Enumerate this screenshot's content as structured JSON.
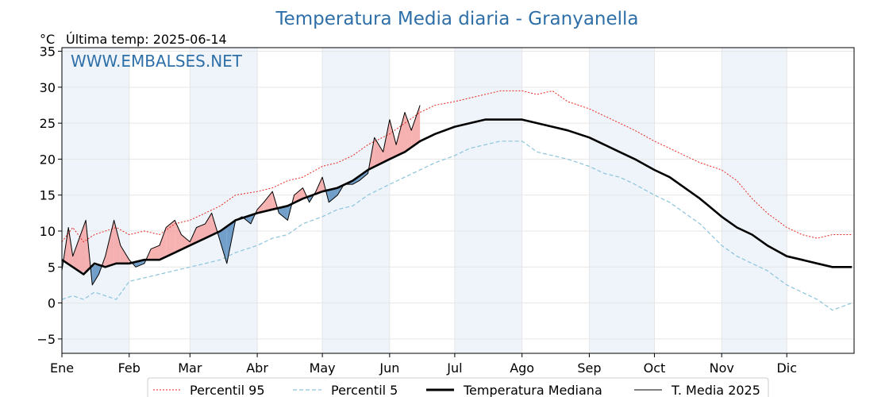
{
  "chart_data": {
    "type": "line",
    "title": "Temperatura Media diaria - Granyanella",
    "unit_label": "°C",
    "last_temp_label": "Última temp: 2025-06-14",
    "watermark": "WWW.EMBALSES.NET",
    "ylim": [
      -7,
      35.5
    ],
    "xlim": [
      0,
      365
    ],
    "y_ticks": [
      -5,
      0,
      5,
      10,
      15,
      20,
      25,
      30,
      35
    ],
    "month_labels": [
      "Ene",
      "Feb",
      "Mar",
      "Abr",
      "May",
      "Jun",
      "Jul",
      "Ago",
      "Sep",
      "Oct",
      "Nov",
      "Dic"
    ],
    "month_starts": [
      0,
      31,
      59,
      90,
      120,
      151,
      181,
      212,
      243,
      273,
      304,
      334
    ],
    "grid": true,
    "legend_position": "bottom-center",
    "colors": {
      "p95": "#e8271e",
      "p5": "#8cc4dc",
      "median": "#000000",
      "current": "#000000",
      "above": "#f4a3a3",
      "below": "#5b8fc0",
      "band": "#eef4fa"
    },
    "series": [
      {
        "name": "Percentil 95",
        "style": "dotted-red",
        "x": [
          0,
          5,
          10,
          15,
          20,
          25,
          31,
          38,
          45,
          52,
          59,
          66,
          73,
          80,
          90,
          97,
          104,
          111,
          120,
          127,
          134,
          141,
          151,
          158,
          165,
          172,
          181,
          188,
          195,
          202,
          212,
          219,
          226,
          233,
          243,
          250,
          257,
          264,
          273,
          280,
          287,
          294,
          304,
          311,
          318,
          325,
          334,
          341,
          348,
          355,
          364
        ],
        "values": [
          8.5,
          10.5,
          8.5,
          9.5,
          10.0,
          10.5,
          9.5,
          10.0,
          9.5,
          11.0,
          11.5,
          12.5,
          13.5,
          15.0,
          15.5,
          16.0,
          17.0,
          17.5,
          19.0,
          19.5,
          20.5,
          22.0,
          23.5,
          25.0,
          26.5,
          27.5,
          28.0,
          28.5,
          29.0,
          29.5,
          29.5,
          29.0,
          29.5,
          28.0,
          27.0,
          26.0,
          25.0,
          24.0,
          22.5,
          21.5,
          20.5,
          19.5,
          18.5,
          17.0,
          14.5,
          12.5,
          10.5,
          9.5,
          9.0,
          9.5,
          9.5
        ]
      },
      {
        "name": "Percentil 5",
        "style": "dashed-lightblue",
        "x": [
          0,
          5,
          10,
          15,
          20,
          25,
          31,
          38,
          45,
          52,
          59,
          66,
          73,
          80,
          90,
          97,
          104,
          111,
          120,
          127,
          134,
          141,
          151,
          158,
          165,
          172,
          181,
          188,
          195,
          202,
          212,
          219,
          226,
          233,
          243,
          250,
          257,
          264,
          273,
          280,
          287,
          294,
          304,
          311,
          318,
          325,
          334,
          341,
          348,
          355,
          364
        ],
        "values": [
          0.5,
          1.0,
          0.5,
          1.5,
          1.0,
          0.5,
          3.0,
          3.5,
          4.0,
          4.5,
          5.0,
          5.5,
          6.0,
          7.0,
          8.0,
          9.0,
          9.5,
          11.0,
          12.0,
          13.0,
          13.5,
          15.0,
          16.5,
          17.5,
          18.5,
          19.5,
          20.5,
          21.5,
          22.0,
          22.5,
          22.5,
          21.0,
          20.5,
          20.0,
          19.0,
          18.0,
          17.5,
          16.5,
          15.0,
          14.0,
          12.5,
          11.0,
          8.0,
          6.5,
          5.5,
          4.5,
          2.5,
          1.5,
          0.5,
          -1.0,
          0.0
        ]
      },
      {
        "name": "Temperatura Mediana",
        "style": "thick-black",
        "x": [
          0,
          5,
          10,
          15,
          20,
          25,
          31,
          38,
          45,
          52,
          59,
          66,
          73,
          80,
          90,
          97,
          104,
          111,
          120,
          127,
          134,
          141,
          151,
          158,
          165,
          172,
          181,
          188,
          195,
          202,
          212,
          219,
          226,
          233,
          243,
          250,
          257,
          264,
          273,
          280,
          287,
          294,
          304,
          311,
          318,
          325,
          334,
          341,
          348,
          355,
          364
        ],
        "values": [
          6.0,
          5.0,
          4.0,
          5.5,
          5.0,
          5.5,
          5.5,
          6.0,
          6.0,
          7.0,
          8.0,
          9.0,
          10.0,
          11.5,
          12.5,
          13.0,
          13.5,
          14.5,
          15.5,
          16.0,
          17.0,
          18.5,
          20.0,
          21.0,
          22.5,
          23.5,
          24.5,
          25.0,
          25.5,
          25.5,
          25.5,
          25.0,
          24.5,
          24.0,
          23.0,
          22.0,
          21.0,
          20.0,
          18.5,
          17.5,
          16.0,
          14.5,
          12.0,
          10.5,
          9.5,
          8.0,
          6.5,
          6.0,
          5.5,
          5.0,
          5.0
        ]
      },
      {
        "name": "T. Media 2025",
        "style": "thin-black",
        "x": [
          0,
          3,
          5,
          8,
          11,
          14,
          17,
          20,
          24,
          27,
          31,
          34,
          38,
          41,
          45,
          48,
          52,
          55,
          59,
          62,
          66,
          69,
          73,
          76,
          80,
          83,
          87,
          90,
          93,
          97,
          100,
          104,
          107,
          111,
          114,
          117,
          120,
          123,
          127,
          130,
          134,
          137,
          141,
          144,
          148,
          151,
          154,
          158,
          161,
          165
        ],
        "values": [
          4.5,
          10.5,
          6.5,
          9.0,
          11.5,
          2.5,
          4.0,
          6.5,
          11.5,
          8.0,
          6.0,
          5.0,
          5.5,
          7.5,
          8.0,
          10.5,
          11.5,
          9.5,
          8.5,
          10.5,
          11.0,
          12.5,
          8.5,
          5.5,
          11.5,
          12.0,
          11.0,
          13.0,
          14.0,
          15.5,
          12.5,
          11.5,
          15.0,
          16.0,
          14.0,
          15.5,
          17.5,
          14.0,
          15.0,
          16.5,
          16.5,
          17.0,
          18.0,
          23.0,
          21.0,
          25.5,
          22.0,
          26.5,
          24.0,
          27.5
        ]
      }
    ]
  },
  "legend": {
    "items": [
      {
        "label": "Percentil 95"
      },
      {
        "label": "Percentil 5"
      },
      {
        "label": "Temperatura Mediana"
      },
      {
        "label": "T. Media 2025"
      }
    ]
  }
}
